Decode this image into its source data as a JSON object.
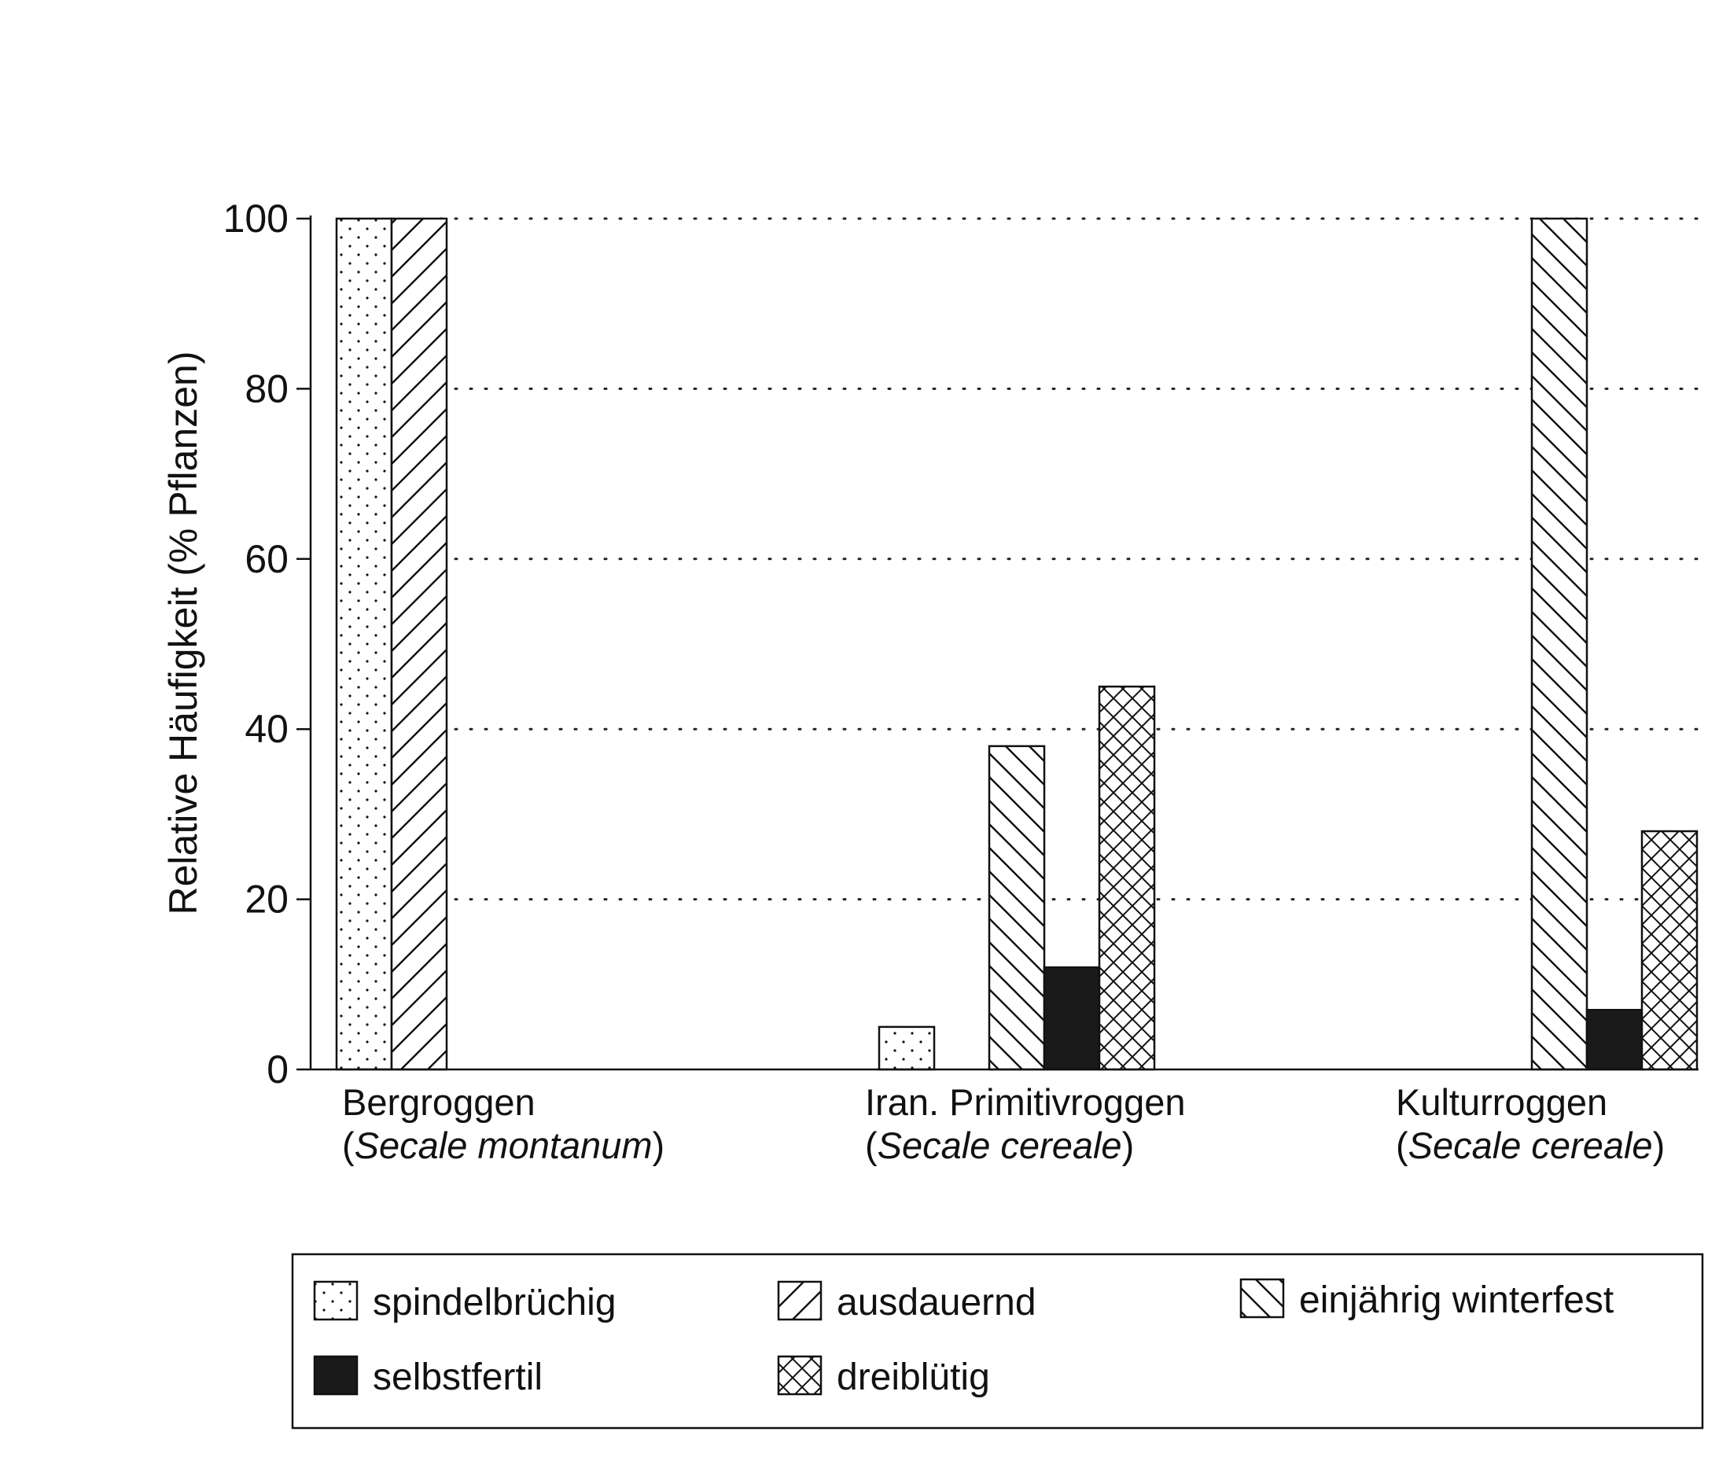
{
  "chart_data": {
    "type": "bar",
    "title": "",
    "xlabel": "",
    "ylabel": "Relative Häufigkeit (% Pflanzen)",
    "ylim": [
      0,
      100
    ],
    "yticks": [
      0,
      20,
      40,
      60,
      80,
      100
    ],
    "grid": "dotted horizontal",
    "legend_position": "bottom",
    "categories": [
      {
        "name": "Bergroggen",
        "species": "Secale montanum"
      },
      {
        "name": "Iran. Primitivroggen",
        "species": "Secale cereale"
      },
      {
        "name": "Kulturroggen",
        "species": "Secale cereale"
      }
    ],
    "series": [
      {
        "name": "spindelbrüchig",
        "pattern": "dots",
        "values": [
          100,
          5,
          0
        ]
      },
      {
        "name": "ausdauernd",
        "pattern": "diagonal-up",
        "values": [
          100,
          0,
          0
        ]
      },
      {
        "name": "einjährig winterfest",
        "pattern": "diagonal-down",
        "values": [
          0,
          38,
          100
        ]
      },
      {
        "name": "selbstfertil",
        "pattern": "solid",
        "values": [
          0,
          12,
          7
        ]
      },
      {
        "name": "dreiblütig",
        "pattern": "crosshatch",
        "values": [
          0,
          45,
          28
        ]
      }
    ],
    "colors": {
      "ink": "#111111",
      "background": "#ffffff",
      "solid_fill": "#1a1a1a"
    }
  }
}
